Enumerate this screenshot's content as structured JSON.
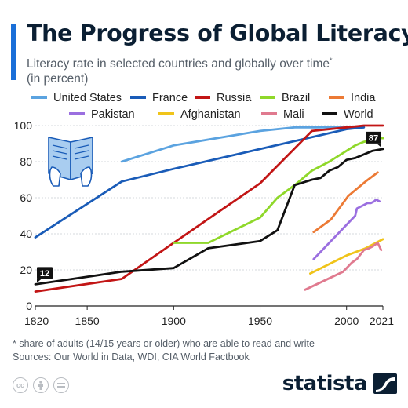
{
  "header": {
    "title": "The Progress of Global Literacy",
    "subtitle": "Literacy rate in selected countries and globally over time",
    "subtitle_marker": "*",
    "subtitle_unit": "(in percent)"
  },
  "footer": {
    "footnote": "* share of adults (14/15 years or older) who are able to read and write",
    "sources": "Sources: Our World in Data, WDI, CIA World Factbook",
    "brand": "statista",
    "license_icons": [
      "cc-icon",
      "attribution-icon",
      "no-derivatives-icon"
    ]
  },
  "chart_data": {
    "type": "line",
    "xlim": [
      1820,
      2021
    ],
    "ylim": [
      0,
      100
    ],
    "x_ticks": [
      "1820",
      "1850",
      "1900",
      "1950",
      "2000",
      "2021"
    ],
    "y_ticks": [
      "0",
      "20",
      "40",
      "60",
      "80",
      "100"
    ],
    "grid": true,
    "legend_position": "top",
    "annotations": [
      {
        "text": "12",
        "x": 1820,
        "y": 12,
        "series": "World"
      },
      {
        "text": "87",
        "x": 2021,
        "y": 87,
        "series": "World"
      }
    ],
    "series": [
      {
        "name": "United States",
        "color": "#5ba3e0",
        "points": [
          [
            1870,
            80
          ],
          [
            1900,
            89
          ],
          [
            1950,
            97
          ],
          [
            1970,
            99
          ],
          [
            2000,
            99
          ],
          [
            2010,
            99
          ]
        ]
      },
      {
        "name": "France",
        "color": "#1a5cb8",
        "points": [
          [
            1820,
            38
          ],
          [
            1870,
            69
          ],
          [
            1900,
            76
          ],
          [
            1950,
            87
          ],
          [
            2000,
            98
          ],
          [
            2010,
            99
          ]
        ]
      },
      {
        "name": "Russia",
        "color": "#c21515",
        "points": [
          [
            1820,
            8
          ],
          [
            1870,
            15
          ],
          [
            1900,
            35
          ],
          [
            1950,
            68
          ],
          [
            1980,
            97
          ],
          [
            2000,
            99
          ],
          [
            2010,
            100
          ],
          [
            2021,
            100
          ]
        ]
      },
      {
        "name": "Brazil",
        "color": "#8fd82a",
        "points": [
          [
            1900,
            35
          ],
          [
            1920,
            35
          ],
          [
            1950,
            49
          ],
          [
            1960,
            60
          ],
          [
            1970,
            67
          ],
          [
            1980,
            75
          ],
          [
            1990,
            80
          ],
          [
            2000,
            86
          ],
          [
            2005,
            89
          ],
          [
            2010,
            91
          ],
          [
            2015,
            92
          ],
          [
            2018,
            93
          ],
          [
            2021,
            93
          ]
        ]
      },
      {
        "name": "India",
        "color": "#ec7a35",
        "points": [
          [
            1981,
            41
          ],
          [
            1991,
            48
          ],
          [
            2001,
            61
          ],
          [
            2011,
            69
          ],
          [
            2018,
            74
          ]
        ]
      },
      {
        "name": "Pakistan",
        "color": "#9b6fe0",
        "points": [
          [
            1981,
            26
          ],
          [
            2005,
            50
          ],
          [
            2006,
            54
          ],
          [
            2008,
            55
          ],
          [
            2010,
            56
          ],
          [
            2012,
            57
          ],
          [
            2014,
            57
          ],
          [
            2016,
            58
          ],
          [
            2017,
            59
          ],
          [
            2019,
            58
          ]
        ]
      },
      {
        "name": "Afghanistan",
        "color": "#f0c41a",
        "points": [
          [
            1979,
            18
          ],
          [
            2000,
            28
          ],
          [
            2011,
            32
          ],
          [
            2021,
            37
          ]
        ]
      },
      {
        "name": "Mali",
        "color": "#e07a8f",
        "points": [
          [
            1976,
            9
          ],
          [
            1998,
            19
          ],
          [
            2003,
            24
          ],
          [
            2006,
            26
          ],
          [
            2010,
            31
          ],
          [
            2013,
            32
          ],
          [
            2015,
            33
          ],
          [
            2018,
            35
          ],
          [
            2020,
            31
          ]
        ]
      },
      {
        "name": "World",
        "color": "#111111",
        "points": [
          [
            1820,
            12
          ],
          [
            1870,
            19
          ],
          [
            1900,
            21
          ],
          [
            1920,
            32
          ],
          [
            1950,
            36
          ],
          [
            1960,
            42
          ],
          [
            1970,
            67
          ],
          [
            1980,
            70
          ],
          [
            1985,
            71
          ],
          [
            1990,
            75
          ],
          [
            1995,
            77
          ],
          [
            2000,
            81
          ],
          [
            2005,
            82
          ],
          [
            2010,
            84
          ],
          [
            2015,
            86
          ],
          [
            2021,
            87
          ]
        ]
      }
    ]
  }
}
